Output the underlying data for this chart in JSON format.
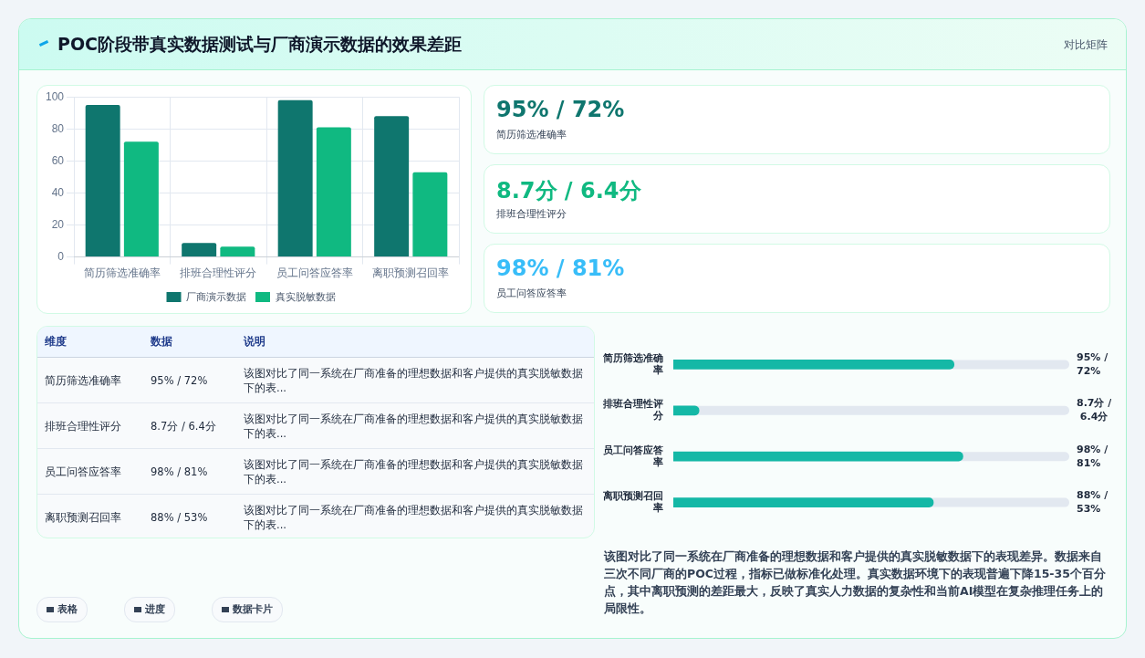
{
  "chart_data": [
    {
      "type": "other",
      "title": "POC阶段带真实数据测试与厂商演示数据的效果差距",
      "annotations": [
        "对比矩阵"
      ]
    },
    {
      "type": "bar",
      "categories": [
        "简历筛选准确率",
        "排班合理性评分",
        "员工问答应答率",
        "离职预测召回率"
      ],
      "series": [
        {
          "name": "厂商演示数据",
          "color": "#0f766e",
          "values": [
            95,
            8.7,
            98,
            88
          ]
        },
        {
          "name": "真实脱敏数据",
          "color": "#10b981",
          "values": [
            72,
            6.4,
            81,
            53
          ]
        }
      ],
      "ylim": [
        0,
        100
      ],
      "yticks": [
        0,
        20,
        40,
        60,
        80,
        100
      ],
      "grid": true,
      "legend": "bottom"
    },
    {
      "type": "other",
      "annotations": [
        "95% / 72%",
        "简历筛选准确率",
        "8.7分 / 6.4分",
        "排班合理性评分",
        "98% / 81%",
        "员工问答应答率"
      ],
      "colors": [
        "#0f766e",
        "#10b981",
        "#38bdf8"
      ]
    },
    {
      "type": "other",
      "categories": [
        "维度",
        "数据",
        "说明"
      ],
      "annotations": [
        "简历筛选准确率",
        "95% / 72%",
        "该图对比了同一系统在厂商准备的理想数据和客户提供的真实脱敏数据下的表...",
        "排班合理性评分",
        "8.7分 / 6.4分",
        "该图对比了同一系统在厂商准备的理想数据和客户提供的真实脱敏数据下的表...",
        "员工问答应答率",
        "98% / 81%",
        "该图对比了同一系统在厂商准备的理想数据和客户提供的真实脱敏数据下的表...",
        "离职预测召回率",
        "88% / 53%",
        "该图对比了同一系统在厂商准备的理想数据和客户提供的真实脱敏数据下的表..."
      ]
    },
    {
      "type": "bar",
      "orientation": "horizontal",
      "xlim": [
        0,
        134
      ],
      "categories": [
        "简历筛选准确率",
        "排班合理性评分",
        "员工问答应答率",
        "离职预测召回率"
      ],
      "values": [
        95,
        8.7,
        98,
        88
      ],
      "value_labels": [
        "95% / 72%",
        "8.7分 / 6.4分",
        "98% / 81%",
        "88% / 53%"
      ],
      "color": "#14b8a6",
      "annotations": [
        "该图对比了同一系统在厂商准备的理想数据和客户提供的真实脱敏数据下的表现差异。数据来自三次不同厂商的POC过程，指标已做标准化处理。真实数据环境下的表现普遍下降15-35个百分点，其中离职预测的差距最大，反映了真实人力数据的复杂性和当前AI模型在复杂推理任务上的局限性。"
      ]
    },
    {
      "type": "other",
      "annotations": [
        "表格",
        "进度",
        "数据卡片"
      ]
    }
  ]
}
